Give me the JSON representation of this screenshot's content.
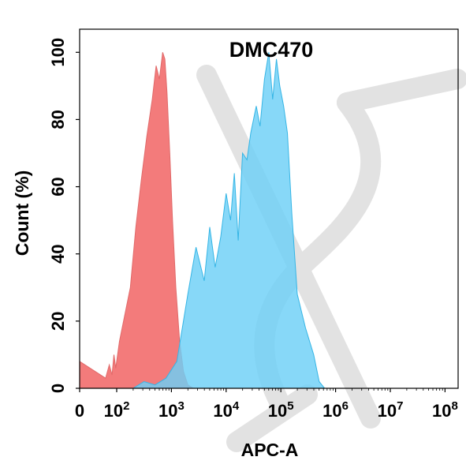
{
  "chart_data": {
    "type": "area",
    "title": "DMC470",
    "xlabel": "APC-A",
    "ylabel": "Count  (%)",
    "ylim": [
      0,
      105
    ],
    "x_scale": "biexponential",
    "x_ticks": [
      {
        "base": "0",
        "exp": ""
      },
      {
        "base": "10",
        "exp": "2"
      },
      {
        "base": "10",
        "exp": "3"
      },
      {
        "base": "10",
        "exp": "4"
      },
      {
        "base": "10",
        "exp": "5"
      },
      {
        "base": "10",
        "exp": "6"
      },
      {
        "base": "10",
        "exp": "7"
      },
      {
        "base": "10",
        "exp": "8"
      }
    ],
    "y_ticks": [
      "0",
      "20",
      "40",
      "60",
      "80",
      "100"
    ],
    "colors": {
      "negative_control": "#f37b7b",
      "sample": "#6ccff6",
      "overlap": "#7a7faa"
    },
    "series": [
      {
        "name": "",
        "color": "#f37b7b",
        "x": [
          "0",
          "10^1.4",
          "10^1.6",
          "10^1.75",
          "10^1.85",
          "10^1.95",
          "10^2.05",
          "10^2.15",
          "10^2.25",
          "10^2.35",
          "10^2.45",
          "10^2.55",
          "10^2.65",
          "10^2.72",
          "10^2.78",
          "10^2.84",
          "10^2.88",
          "10^2.92",
          "10^2.97",
          "10^3.02",
          "10^3.08",
          "10^3.15",
          "10^3.22",
          "10^3.3",
          "10^3.4"
        ],
        "values": [
          8,
          3,
          7,
          4,
          10,
          6,
          14,
          22,
          30,
          48,
          62,
          75,
          86,
          96,
          92,
          100,
          98,
          88,
          70,
          50,
          30,
          14,
          5,
          1,
          0
        ]
      },
      {
        "name": "",
        "color": "#6ccff6",
        "x": [
          "10^2.3",
          "10^2.5",
          "10^2.7",
          "10^2.9",
          "10^3.1",
          "10^3.3",
          "10^3.45",
          "10^3.6",
          "10^3.7",
          "10^3.8",
          "10^3.9",
          "10^4.0",
          "10^4.08",
          "10^4.15",
          "10^4.22",
          "10^4.3",
          "10^4.38",
          "10^4.45",
          "10^4.55",
          "10^4.62",
          "10^4.7",
          "10^4.78",
          "10^4.85",
          "10^4.92",
          "10^4.98",
          "10^5.05",
          "10^5.12",
          "10^5.2",
          "10^5.3",
          "10^5.45",
          "10^5.6",
          "10^5.7",
          "10^5.8"
        ],
        "values": [
          0,
          2,
          1,
          3,
          8,
          28,
          42,
          32,
          48,
          36,
          45,
          58,
          50,
          64,
          44,
          70,
          68,
          76,
          84,
          78,
          92,
          100,
          86,
          98,
          90,
          84,
          76,
          52,
          28,
          18,
          10,
          2,
          0
        ]
      }
    ]
  }
}
